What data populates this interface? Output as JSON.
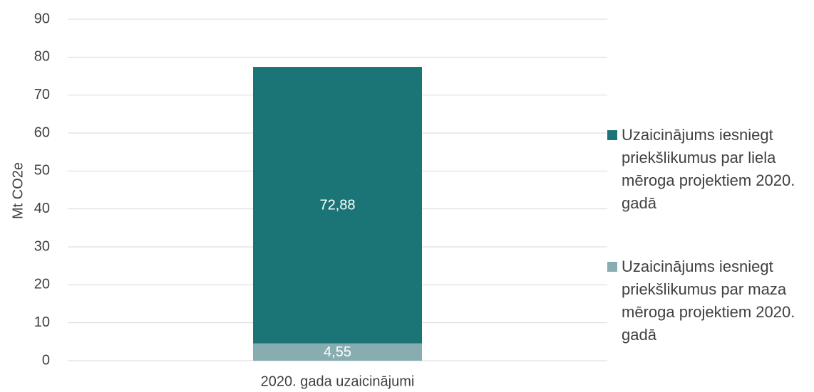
{
  "chart_data": {
    "type": "stacked_bar",
    "y_label": "Mt CO2e",
    "categories": [
      "2020. gada uzaicinājumi"
    ],
    "series": [
      {
        "name": "Uzaicinājums iesniegt priekšlikumus par maza mēroga projektiem 2020. gadā",
        "color": "#88adb0",
        "values": [
          4.55
        ],
        "value_labels": [
          "4,55"
        ]
      },
      {
        "name": "Uzaicinājums iesniegt priekšlikumus par liela mēroga projektiem 2020. gadā",
        "color": "#1b7577",
        "values": [
          72.88
        ],
        "value_labels": [
          "72,88"
        ]
      }
    ],
    "ylim": [
      0,
      90
    ],
    "yticks": [
      0,
      10,
      20,
      30,
      40,
      50,
      60,
      70,
      80,
      90
    ],
    "grid": true,
    "legend": "right"
  }
}
